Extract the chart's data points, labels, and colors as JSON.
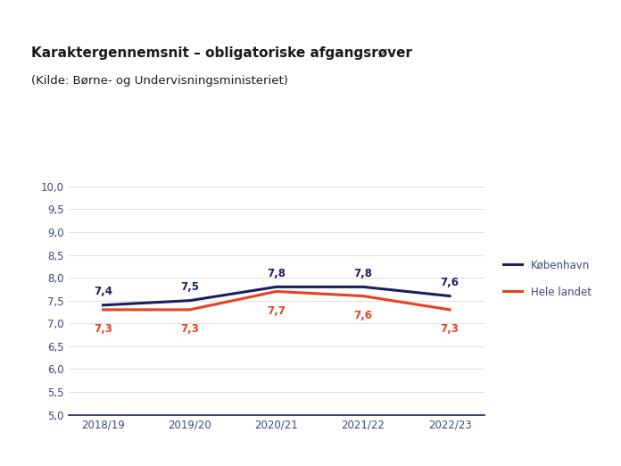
{
  "title_line1": "Karaktergennemsnit – obligatoriske afgangsrøver",
  "title_line2": "(Kilde: Børne- og Undervisningsministeriet)",
  "x_labels": [
    "2018/19",
    "2019/20",
    "2020/21",
    "2021/22",
    "2022/23"
  ],
  "kobenhavn_values": [
    7.4,
    7.5,
    7.8,
    7.8,
    7.6
  ],
  "hele_landet_values": [
    7.3,
    7.3,
    7.7,
    7.6,
    7.3
  ],
  "kobenhavn_color": "#1a1f5e",
  "hele_landet_color": "#e8411e",
  "tick_label_color": "#3c4a7a",
  "ylim": [
    5.0,
    10.0
  ],
  "yticks": [
    5.0,
    5.5,
    6.0,
    6.5,
    7.0,
    7.5,
    8.0,
    8.5,
    9.0,
    9.5,
    10.0
  ],
  "background_color": "#ffffff",
  "line_width": 2.2,
  "legend_kobenhavn": "København",
  "legend_hele_landet": "Hele landet",
  "annotation_fontsize": 8.5,
  "axis_fontsize": 8.5,
  "title_fontsize1": 11,
  "title_fontsize2": 9.5,
  "title_color": "#1a1a1a",
  "spine_color": "#1a1f5e",
  "grid_color": "#d0d0d0"
}
